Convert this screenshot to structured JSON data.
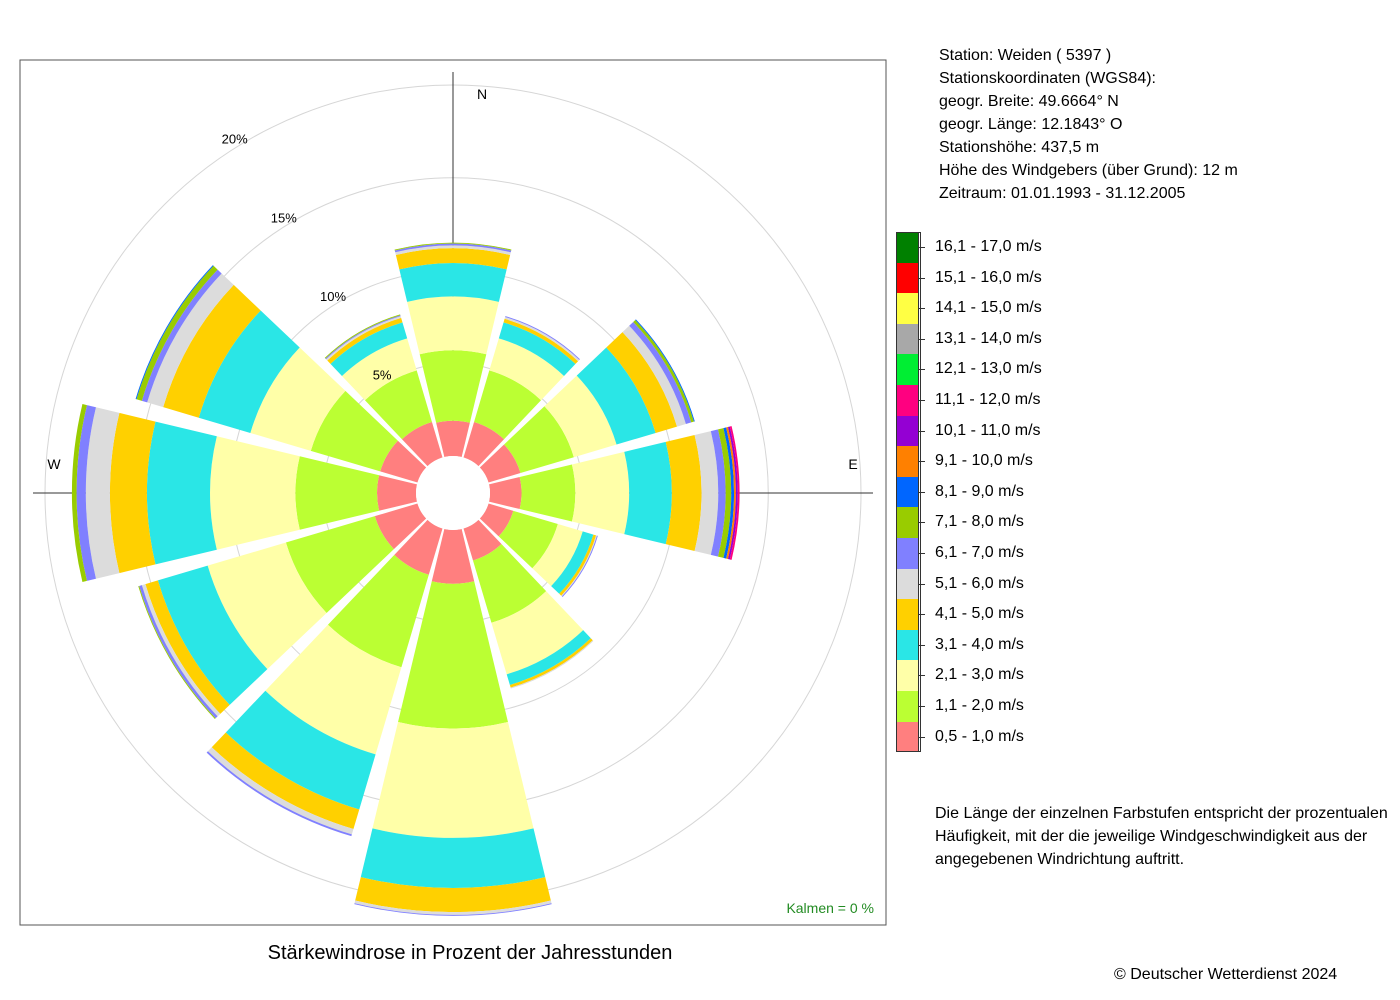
{
  "info": {
    "station": "Station:  Weiden  ( 5397 )",
    "coords_label": "Stationskoordinaten (WGS84):",
    "lat": "geogr. Breite: 49.6664° N",
    "lon": "geogr. Länge: 12.1843° O",
    "altitude": "Stationshöhe: 437,5 m",
    "sensor_height": "Höhe des Windgebers (über Grund): 12 m",
    "period": "Zeitraum: 01.01.1993 - 31.12.2005"
  },
  "note": "Die Länge der einzelnen Farbstufen entspricht der prozentualen Häufigkeit, mit der die jeweilige Windgeschwindigkeit aus der angegebenen Windrichtung auftritt.",
  "copyright": "© Deutscher Wetterdienst  2024",
  "chart_data": {
    "type": "windrose",
    "title": "Stärkewindrose in Prozent der Jahresstunden",
    "calm_label": "Kalmen  =  0 %",
    "calm_color": "#228b22",
    "compass": [
      "N",
      "E",
      "W"
    ],
    "radial_ticks": [
      {
        "value": 5,
        "label": "5%"
      },
      {
        "value": 10,
        "label": "10%"
      },
      {
        "value": 15,
        "label": "15%"
      },
      {
        "value": 20,
        "label": "20%"
      }
    ],
    "sectors_deg": [
      0,
      30,
      60,
      90,
      120,
      150,
      180,
      210,
      240,
      270,
      300,
      330
    ],
    "bins": [
      {
        "label": "0,5 - 1,0 m/s",
        "color": "#ff7f7f"
      },
      {
        "label": "1,1 - 2,0 m/s",
        "color": "#bbff33"
      },
      {
        "label": "2,1 - 3,0 m/s",
        "color": "#ffffa8"
      },
      {
        "label": "3,1 - 4,0 m/s",
        "color": "#2ae6e6"
      },
      {
        "label": "4,1 - 5,0 m/s",
        "color": "#ffd000"
      },
      {
        "label": "5,1 - 6,0 m/s",
        "color": "#dcdcdc"
      },
      {
        "label": "6,1 - 7,0 m/s",
        "color": "#8080ff"
      },
      {
        "label": "7,1 - 8,0 m/s",
        "color": "#99cc00"
      },
      {
        "label": "8,1 - 9,0 m/s",
        "color": "#0066ff"
      },
      {
        "label": "9,1 - 10,0 m/s",
        "color": "#ff8000"
      },
      {
        "label": "10,1 - 11,0 m/s",
        "color": "#9400d3"
      },
      {
        "label": "11,1 - 12,0 m/s",
        "color": "#ff0080"
      },
      {
        "label": "12,1 - 13,0 m/s",
        "color": "#00ee33"
      },
      {
        "label": "13,1 - 14,0 m/s",
        "color": "#a8a8a8"
      },
      {
        "label": "14,1 - 15,0 m/s",
        "color": "#ffff44"
      },
      {
        "label": "15,1 - 16,0 m/s",
        "color": "#ff0000"
      },
      {
        "label": "16,1 - 17,0 m/s",
        "color": "#008000"
      }
    ],
    "series": [
      {
        "dir": 0,
        "values": [
          1.9,
          3.8,
          2.9,
          1.8,
          0.8,
          0.15,
          0.1,
          0.05,
          0,
          0,
          0,
          0,
          0,
          0,
          0,
          0,
          0
        ]
      },
      {
        "dir": 30,
        "values": [
          2.0,
          2.9,
          1.8,
          0.9,
          0.2,
          0.1,
          0.05,
          0,
          0,
          0,
          0,
          0,
          0,
          0,
          0,
          0,
          0
        ]
      },
      {
        "dir": 60,
        "values": [
          1.8,
          3.0,
          2.4,
          2.2,
          1.2,
          0.5,
          0.3,
          0.15,
          0.05,
          0,
          0,
          0,
          0,
          0,
          0,
          0,
          0
        ]
      },
      {
        "dir": 90,
        "values": [
          1.7,
          2.9,
          2.9,
          2.3,
          1.6,
          0.9,
          0.4,
          0.3,
          0.15,
          0.1,
          0.1,
          0.1,
          0,
          0,
          0,
          0,
          0
        ]
      },
      {
        "dir": 120,
        "values": [
          1.4,
          2.5,
          1.4,
          0.6,
          0.15,
          0.05,
          0.05,
          0,
          0,
          0,
          0,
          0,
          0,
          0,
          0,
          0,
          0
        ]
      },
      {
        "dir": 150,
        "values": [
          1.8,
          3.5,
          2.9,
          0.6,
          0.15,
          0.05,
          0,
          0,
          0,
          0,
          0,
          0,
          0,
          0,
          0,
          0,
          0
        ]
      },
      {
        "dir": 180,
        "values": [
          2.9,
          7.8,
          5.9,
          2.7,
          1.3,
          0.15,
          0.05,
          0,
          0,
          0,
          0,
          0,
          0,
          0,
          0,
          0,
          0
        ]
      },
      {
        "dir": 210,
        "values": [
          2.6,
          5.2,
          4.9,
          3.1,
          1.1,
          0.3,
          0.1,
          0,
          0,
          0,
          0,
          0,
          0,
          0,
          0,
          0,
          0
        ]
      },
      {
        "dir": 240,
        "values": [
          2.4,
          5.0,
          4.4,
          2.8,
          0.7,
          0.2,
          0.15,
          0.05,
          0,
          0,
          0,
          0,
          0,
          0,
          0,
          0,
          0
        ]
      },
      {
        "dir": 270,
        "values": [
          2.1,
          4.4,
          4.6,
          3.4,
          2.0,
          1.3,
          0.5,
          0.25,
          0,
          0,
          0,
          0,
          0,
          0,
          0,
          0,
          0
        ]
      },
      {
        "dir": 300,
        "values": [
          2.1,
          3.9,
          3.4,
          2.9,
          2.0,
          0.9,
          0.3,
          0.3,
          0.05,
          0,
          0,
          0,
          0,
          0,
          0,
          0,
          0
        ]
      },
      {
        "dir": 330,
        "values": [
          2.0,
          2.9,
          1.8,
          0.9,
          0.25,
          0.1,
          0.05,
          0.05,
          0,
          0,
          0,
          0,
          0,
          0,
          0,
          0,
          0
        ]
      }
    ]
  }
}
